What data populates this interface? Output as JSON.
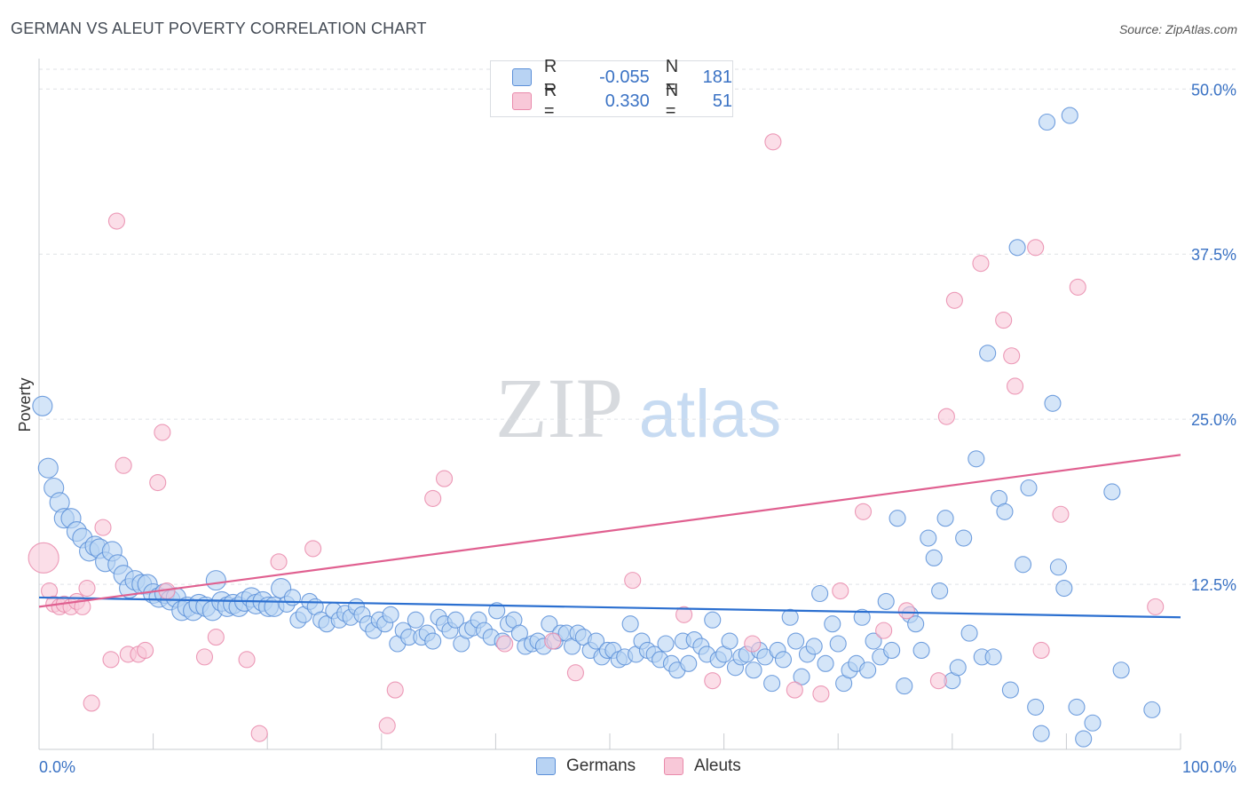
{
  "title": "GERMAN VS ALEUT POVERTY CORRELATION CHART",
  "source": "Source: ZipAtlas.com",
  "legend": {
    "r_label": "R =",
    "n_label": "N =",
    "germans": {
      "r": "-0.055",
      "n": "181"
    },
    "aleuts": {
      "r": "0.330",
      "n": "51"
    }
  },
  "bottom_legend": {
    "germans": "Germans",
    "aleuts": "Aleuts"
  },
  "watermark": {
    "zip": "ZIP",
    "atlas": "atlas"
  },
  "colors": {
    "germans_fill": "#b8d3f3",
    "germans_stroke": "#5b8fd8",
    "germans_line": "#2b6fd0",
    "aleuts_fill": "#f8c8d8",
    "aleuts_stroke": "#e98aab",
    "aleuts_line": "#e06090",
    "tick_text": "#3a72c4"
  },
  "chart_data": {
    "type": "scatter",
    "title": "GERMAN VS ALEUT POVERTY CORRELATION CHART",
    "ylabel": "Poverty",
    "xlabel": "",
    "xlim": [
      0,
      100
    ],
    "ylim": [
      0,
      51.5
    ],
    "x_tick_labels": [
      "0.0%",
      "100.0%"
    ],
    "y_ticks": [
      12.5,
      25.0,
      37.5,
      50.0
    ],
    "y_tick_labels": [
      "12.5%",
      "25.0%",
      "37.5%",
      "50.0%"
    ],
    "series": [
      {
        "name": "Germans",
        "r": -0.055,
        "n": 181,
        "trend": {
          "x": [
            0,
            100
          ],
          "y": [
            11.5,
            10.0
          ]
        },
        "points": [
          [
            0.3,
            26.0,
            1
          ],
          [
            0.8,
            21.3,
            1
          ],
          [
            1.3,
            19.8,
            1
          ],
          [
            1.8,
            18.7,
            1
          ],
          [
            2.2,
            17.5,
            1
          ],
          [
            2.8,
            17.5,
            1
          ],
          [
            3.3,
            16.5,
            1
          ],
          [
            3.8,
            16.0,
            1
          ],
          [
            4.4,
            15.0,
            1
          ],
          [
            4.9,
            15.4,
            1
          ],
          [
            5.3,
            15.2,
            1
          ],
          [
            5.8,
            14.2,
            1
          ],
          [
            6.4,
            15.0,
            1
          ],
          [
            6.9,
            14.0,
            1
          ],
          [
            7.4,
            13.2,
            1
          ],
          [
            7.9,
            12.2,
            1
          ],
          [
            8.4,
            12.8,
            1
          ],
          [
            9.0,
            12.5,
            1
          ],
          [
            9.5,
            12.5,
            1
          ],
          [
            10.0,
            11.8,
            1
          ],
          [
            10.5,
            11.5,
            1
          ],
          [
            11.0,
            11.8,
            1
          ],
          [
            11.5,
            11.3,
            1
          ],
          [
            12.0,
            11.5,
            1
          ],
          [
            12.5,
            10.5,
            1
          ],
          [
            13.0,
            10.8,
            1
          ],
          [
            13.5,
            10.5,
            1
          ],
          [
            14.0,
            11.0,
            1
          ],
          [
            14.6,
            10.8,
            1
          ],
          [
            15.2,
            10.5,
            1
          ],
          [
            15.5,
            12.8,
            1
          ],
          [
            16.0,
            11.2,
            1
          ],
          [
            16.5,
            10.8,
            1
          ],
          [
            17.0,
            11.0,
            1
          ],
          [
            17.5,
            10.8,
            1
          ],
          [
            18.0,
            11.2,
            1
          ],
          [
            18.6,
            11.5,
            1
          ],
          [
            19.0,
            11.0,
            1
          ],
          [
            19.6,
            11.2,
            1
          ],
          [
            20.1,
            10.8,
            1
          ],
          [
            20.6,
            10.8,
            1
          ],
          [
            21.2,
            12.2,
            1
          ],
          [
            21.7,
            11.0,
            0
          ],
          [
            22.2,
            11.5,
            0
          ],
          [
            22.7,
            9.8,
            0
          ],
          [
            23.2,
            10.2,
            0
          ],
          [
            23.7,
            11.2,
            0
          ],
          [
            24.2,
            10.8,
            0
          ],
          [
            24.7,
            9.8,
            0
          ],
          [
            25.2,
            9.5,
            0
          ],
          [
            25.8,
            10.5,
            0
          ],
          [
            26.3,
            9.8,
            0
          ],
          [
            26.8,
            10.3,
            0
          ],
          [
            27.3,
            10.0,
            0
          ],
          [
            27.8,
            10.8,
            0
          ],
          [
            28.3,
            10.2,
            0
          ],
          [
            28.8,
            9.5,
            0
          ],
          [
            29.3,
            9.0,
            0
          ],
          [
            29.8,
            9.8,
            0
          ],
          [
            30.3,
            9.5,
            0
          ],
          [
            30.8,
            10.2,
            0
          ],
          [
            31.4,
            8.0,
            0
          ],
          [
            31.9,
            9.0,
            0
          ],
          [
            32.4,
            8.5,
            0
          ],
          [
            33.0,
            9.8,
            0
          ],
          [
            33.5,
            8.5,
            0
          ],
          [
            34.0,
            8.8,
            0
          ],
          [
            34.5,
            8.2,
            0
          ],
          [
            35.0,
            10.0,
            0
          ],
          [
            35.5,
            9.5,
            0
          ],
          [
            36.0,
            9.0,
            0
          ],
          [
            36.5,
            9.8,
            0
          ],
          [
            37.0,
            8.0,
            0
          ],
          [
            37.5,
            9.0,
            0
          ],
          [
            38.0,
            9.2,
            0
          ],
          [
            38.5,
            9.8,
            0
          ],
          [
            39.0,
            9.0,
            0
          ],
          [
            39.6,
            8.5,
            0
          ],
          [
            40.1,
            10.5,
            0
          ],
          [
            40.6,
            8.2,
            0
          ],
          [
            41.1,
            9.5,
            0
          ],
          [
            41.6,
            9.8,
            0
          ],
          [
            42.1,
            8.8,
            0
          ],
          [
            42.6,
            7.8,
            0
          ],
          [
            43.2,
            8.0,
            0
          ],
          [
            43.7,
            8.2,
            0
          ],
          [
            44.2,
            7.8,
            0
          ],
          [
            44.7,
            9.5,
            0
          ],
          [
            45.2,
            8.2,
            0
          ],
          [
            45.7,
            8.8,
            0
          ],
          [
            46.2,
            8.8,
            0
          ],
          [
            46.7,
            7.8,
            0
          ],
          [
            47.2,
            8.8,
            0
          ],
          [
            47.7,
            8.5,
            0
          ],
          [
            48.3,
            7.5,
            0
          ],
          [
            48.8,
            8.2,
            0
          ],
          [
            49.3,
            7.0,
            0
          ],
          [
            49.8,
            7.5,
            0
          ],
          [
            50.3,
            7.5,
            0
          ],
          [
            50.8,
            6.8,
            0
          ],
          [
            51.3,
            7.0,
            0
          ],
          [
            51.8,
            9.5,
            0
          ],
          [
            52.3,
            7.2,
            0
          ],
          [
            52.8,
            8.2,
            0
          ],
          [
            53.3,
            7.5,
            0
          ],
          [
            53.9,
            7.2,
            0
          ],
          [
            54.4,
            6.8,
            0
          ],
          [
            54.9,
            8.0,
            0
          ],
          [
            55.4,
            6.5,
            0
          ],
          [
            55.9,
            6.0,
            0
          ],
          [
            56.4,
            8.2,
            0
          ],
          [
            56.9,
            6.5,
            0
          ],
          [
            57.4,
            8.3,
            0
          ],
          [
            58.0,
            7.8,
            0
          ],
          [
            58.5,
            7.2,
            0
          ],
          [
            59.0,
            9.8,
            0
          ],
          [
            59.5,
            6.8,
            0
          ],
          [
            60.0,
            7.2,
            0
          ],
          [
            60.5,
            8.2,
            0
          ],
          [
            61.0,
            6.2,
            0
          ],
          [
            61.5,
            7.0,
            0
          ],
          [
            62.0,
            7.2,
            0
          ],
          [
            62.6,
            6.0,
            0
          ],
          [
            63.1,
            7.5,
            0
          ],
          [
            63.6,
            7.0,
            0
          ],
          [
            64.2,
            5.0,
            0
          ],
          [
            64.7,
            7.5,
            0
          ],
          [
            65.2,
            6.8,
            0
          ],
          [
            65.8,
            10.0,
            0
          ],
          [
            66.3,
            8.2,
            0
          ],
          [
            66.8,
            5.5,
            0
          ],
          [
            67.3,
            7.2,
            0
          ],
          [
            67.9,
            7.8,
            0
          ],
          [
            68.4,
            11.8,
            0
          ],
          [
            68.9,
            6.5,
            0
          ],
          [
            69.5,
            9.5,
            0
          ],
          [
            70.0,
            8.0,
            0
          ],
          [
            70.5,
            5.0,
            0
          ],
          [
            71.0,
            6.0,
            0
          ],
          [
            71.6,
            6.5,
            0
          ],
          [
            72.1,
            10.0,
            0
          ],
          [
            72.6,
            6.0,
            0
          ],
          [
            73.1,
            8.2,
            0
          ],
          [
            73.7,
            7.0,
            0
          ],
          [
            74.2,
            11.2,
            0
          ],
          [
            74.7,
            7.5,
            0
          ],
          [
            75.2,
            17.5,
            0
          ],
          [
            75.8,
            4.8,
            0
          ],
          [
            76.3,
            10.2,
            0
          ],
          [
            76.8,
            9.5,
            0
          ],
          [
            77.3,
            7.5,
            0
          ],
          [
            77.9,
            16.0,
            0
          ],
          [
            78.4,
            14.5,
            0
          ],
          [
            78.9,
            12.0,
            0
          ],
          [
            79.4,
            17.5,
            0
          ],
          [
            80.0,
            5.2,
            0
          ],
          [
            80.5,
            6.2,
            0
          ],
          [
            81.0,
            16.0,
            0
          ],
          [
            81.5,
            8.8,
            0
          ],
          [
            82.1,
            22.0,
            0
          ],
          [
            82.6,
            7.0,
            0
          ],
          [
            83.1,
            30.0,
            0
          ],
          [
            83.6,
            7.0,
            0
          ],
          [
            84.1,
            19.0,
            0
          ],
          [
            84.6,
            18.0,
            0
          ],
          [
            85.1,
            4.5,
            0
          ],
          [
            85.7,
            38.0,
            0
          ],
          [
            86.2,
            14.0,
            0
          ],
          [
            86.7,
            19.8,
            0
          ],
          [
            87.3,
            3.2,
            0
          ],
          [
            87.8,
            1.2,
            0
          ],
          [
            88.3,
            47.5,
            0
          ],
          [
            88.8,
            26.2,
            0
          ],
          [
            89.3,
            13.8,
            0
          ],
          [
            89.8,
            12.2,
            0
          ],
          [
            90.3,
            48.0,
            0
          ],
          [
            90.9,
            3.2,
            0
          ],
          [
            91.5,
            0.8,
            0
          ],
          [
            92.3,
            2.0,
            0
          ],
          [
            94.0,
            19.5,
            0
          ],
          [
            94.8,
            6.0,
            0
          ],
          [
            97.5,
            3.0,
            0
          ]
        ]
      },
      {
        "name": "Aleuts",
        "r": 0.33,
        "n": 51,
        "trend": {
          "x": [
            0,
            100
          ],
          "y": [
            10.8,
            22.3
          ]
        },
        "points": [
          [
            0.4,
            14.5,
            2
          ],
          [
            0.9,
            12.0,
            0
          ],
          [
            1.3,
            11.0,
            0
          ],
          [
            1.8,
            10.8,
            0
          ],
          [
            2.2,
            11.0,
            0
          ],
          [
            2.8,
            10.8,
            0
          ],
          [
            3.3,
            11.2,
            0
          ],
          [
            3.8,
            10.8,
            0
          ],
          [
            4.2,
            12.2,
            0
          ],
          [
            4.6,
            3.5,
            0
          ],
          [
            5.6,
            16.8,
            0
          ],
          [
            6.3,
            6.8,
            0
          ],
          [
            6.8,
            40.0,
            0
          ],
          [
            7.4,
            21.5,
            0
          ],
          [
            7.8,
            7.2,
            0
          ],
          [
            8.7,
            7.2,
            0
          ],
          [
            9.3,
            7.5,
            0
          ],
          [
            10.4,
            20.2,
            0
          ],
          [
            10.8,
            24.0,
            0
          ],
          [
            11.2,
            12.0,
            0
          ],
          [
            14.5,
            7.0,
            0
          ],
          [
            15.5,
            8.5,
            0
          ],
          [
            18.2,
            6.8,
            0
          ],
          [
            19.3,
            1.2,
            0
          ],
          [
            21.0,
            14.2,
            0
          ],
          [
            24.0,
            15.2,
            0
          ],
          [
            30.5,
            1.8,
            0
          ],
          [
            31.2,
            4.5,
            0
          ],
          [
            34.5,
            19.0,
            0
          ],
          [
            35.5,
            20.5,
            0
          ],
          [
            40.8,
            8.0,
            0
          ],
          [
            45.0,
            8.2,
            0
          ],
          [
            47.0,
            5.8,
            0
          ],
          [
            52.0,
            12.8,
            0
          ],
          [
            56.5,
            10.2,
            0
          ],
          [
            59.0,
            5.2,
            0
          ],
          [
            62.5,
            8.0,
            0
          ],
          [
            64.3,
            46.0,
            0
          ],
          [
            66.2,
            4.5,
            0
          ],
          [
            68.5,
            4.2,
            0
          ],
          [
            70.2,
            12.0,
            0
          ],
          [
            72.2,
            18.0,
            0
          ],
          [
            74.0,
            9.0,
            0
          ],
          [
            76.0,
            10.5,
            0
          ],
          [
            78.8,
            5.2,
            0
          ],
          [
            79.5,
            25.2,
            0
          ],
          [
            80.2,
            34.0,
            0
          ],
          [
            82.5,
            36.8,
            0
          ],
          [
            84.5,
            32.5,
            0
          ],
          [
            85.2,
            29.8,
            0
          ],
          [
            85.5,
            27.5,
            0
          ],
          [
            87.3,
            38.0,
            0
          ],
          [
            87.8,
            7.5,
            0
          ],
          [
            89.5,
            17.8,
            0
          ],
          [
            91.0,
            35.0,
            0
          ],
          [
            97.8,
            10.8,
            0
          ]
        ]
      }
    ]
  }
}
